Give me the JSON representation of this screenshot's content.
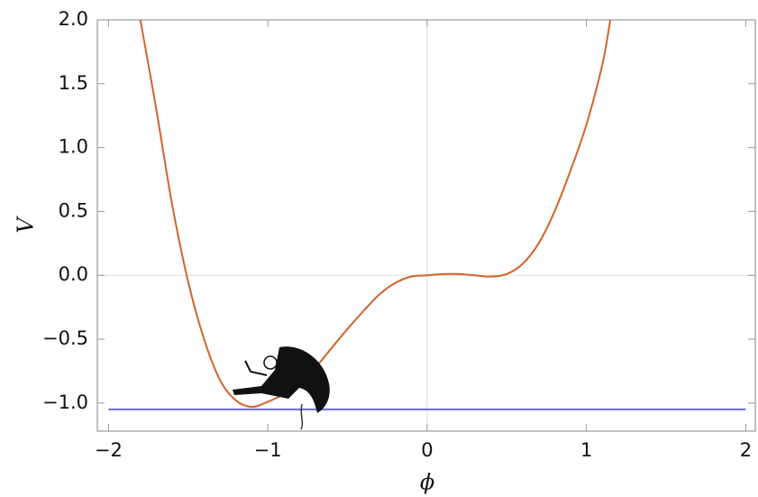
{
  "chart_data": {
    "type": "line",
    "xlabel": "ϕ",
    "ylabel": "V",
    "xlim": [
      -2.07,
      2.06
    ],
    "ylim": [
      -1.22,
      2.0
    ],
    "xticks": [
      {
        "value": -2,
        "label": "−2"
      },
      {
        "value": -1,
        "label": "−1"
      },
      0,
      1,
      2
    ],
    "yticks": [
      {
        "value": -1.0,
        "label": "−1.0"
      },
      {
        "value": -0.5,
        "label": "−0.5"
      },
      {
        "value": 0,
        "label": "0.0"
      },
      0.5,
      {
        "value": 1.0,
        "label": "1.0"
      },
      1.5,
      {
        "value": 2.0,
        "label": "2.0"
      }
    ],
    "zero_lines": true,
    "series": [
      {
        "color": "#d4622a",
        "x": [
          -1.8,
          -1.7,
          -1.6,
          -1.5,
          -1.4,
          -1.3,
          -1.2,
          -1.1,
          -1.0,
          -0.9,
          -0.8,
          -0.7,
          -0.6,
          -0.5,
          -0.4,
          -0.3,
          -0.2,
          -0.1,
          0,
          0.1,
          0.2,
          0.3,
          0.4,
          0.5,
          0.6,
          0.7,
          0.8,
          0.9,
          1.0,
          1.1,
          1.15
        ],
        "values": [
          2.0,
          1.3,
          0.55,
          -0.05,
          -0.5,
          -0.82,
          -0.98,
          -1.03,
          -0.99,
          -0.93,
          -0.84,
          -0.72,
          -0.57,
          -0.42,
          -0.28,
          -0.15,
          -0.06,
          -0.01,
          0,
          0.01,
          0.01,
          0.0,
          -0.01,
          0.01,
          0.09,
          0.25,
          0.5,
          0.82,
          1.18,
          1.65,
          2.0
        ]
      },
      {
        "color": "#6a6ad2",
        "x": [
          -2,
          2
        ],
        "values": [
          -1.05,
          -1.05
        ]
      }
    ]
  }
}
